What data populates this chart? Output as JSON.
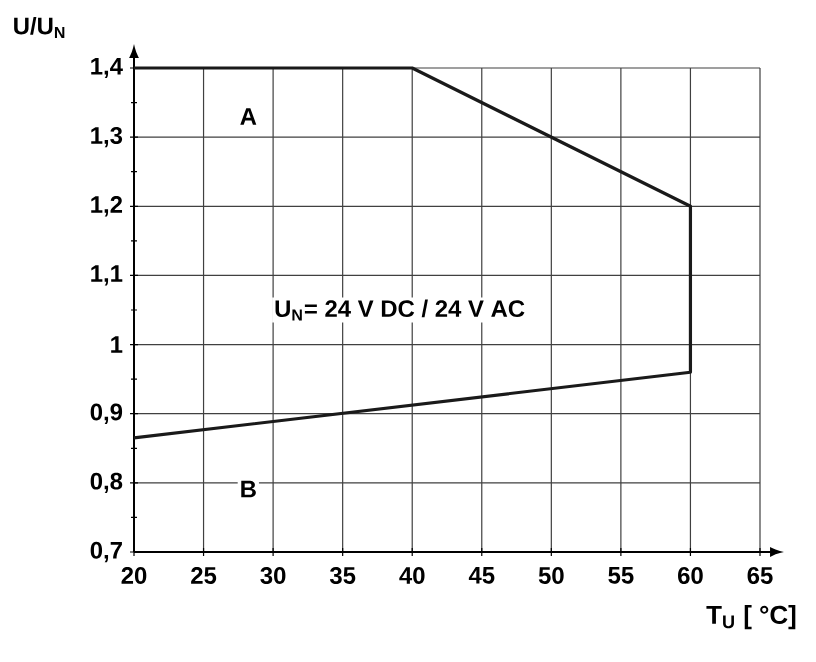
{
  "chart_data": {
    "type": "line",
    "xlabel": "T$_{U}$ [ °C]",
    "ylabel": "U/U$_{N}$",
    "x": [
      20,
      40,
      60,
      60,
      20
    ],
    "series": [
      {
        "color": "#1a1a1a",
        "values": [
          1.4,
          1.4,
          1.2,
          0.96,
          0.865
        ]
      }
    ],
    "xlim": [
      20,
      65
    ],
    "xticks": [
      20,
      25,
      30,
      35,
      40,
      45,
      50,
      55,
      60,
      65
    ],
    "ylim": [
      0.7,
      1.4
    ],
    "yticks": [
      {
        "value": 0.7,
        "label": "0,7"
      },
      {
        "value": 0.8,
        "label": "0,8"
      },
      {
        "value": 0.9,
        "label": "0,9"
      },
      {
        "value": 1,
        "label": "1"
      },
      {
        "value": 1.1,
        "label": "1,1"
      },
      {
        "value": 1.2,
        "label": "1,2"
      },
      {
        "value": 1.3,
        "label": "1,3"
      },
      {
        "value": 1.4,
        "label": "1,4"
      }
    ],
    "grid": true,
    "marker": "none",
    "line_style": "solid",
    "annotations": [
      "A",
      "B",
      "U$_{N}$= 24 V DC / 24 V AC"
    ]
  }
}
